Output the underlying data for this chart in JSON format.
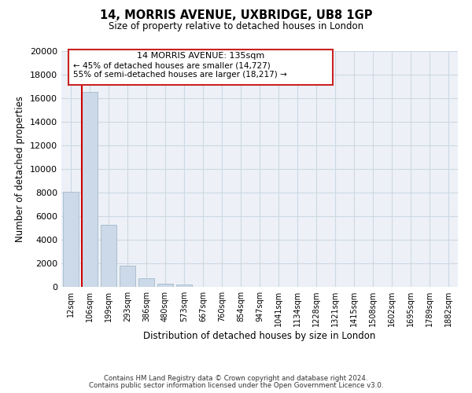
{
  "title": "14, MORRIS AVENUE, UXBRIDGE, UB8 1GP",
  "subtitle": "Size of property relative to detached houses in London",
  "xlabel": "Distribution of detached houses by size in London",
  "ylabel": "Number of detached properties",
  "bar_labels": [
    "12sqm",
    "106sqm",
    "199sqm",
    "293sqm",
    "386sqm",
    "480sqm",
    "573sqm",
    "667sqm",
    "760sqm",
    "854sqm",
    "947sqm",
    "1041sqm",
    "1134sqm",
    "1228sqm",
    "1321sqm",
    "1415sqm",
    "1508sqm",
    "1602sqm",
    "1695sqm",
    "1789sqm",
    "1882sqm"
  ],
  "bar_values": [
    8100,
    16500,
    5300,
    1800,
    750,
    300,
    200,
    0,
    0,
    0,
    0,
    0,
    0,
    0,
    0,
    0,
    0,
    0,
    0,
    0,
    0
  ],
  "bar_color": "#ccd9e8",
  "bar_edge_color": "#aabfcf",
  "vline_color": "#cc0000",
  "ylim": [
    0,
    20000
  ],
  "yticks": [
    0,
    2000,
    4000,
    6000,
    8000,
    10000,
    12000,
    14000,
    16000,
    18000,
    20000
  ],
  "annotation_title": "14 MORRIS AVENUE: 135sqm",
  "annotation_line1": "← 45% of detached houses are smaller (14,727)",
  "annotation_line2": "55% of semi-detached houses are larger (18,217) →",
  "footnote1": "Contains HM Land Registry data © Crown copyright and database right 2024.",
  "footnote2": "Contains public sector information licensed under the Open Government Licence v3.0.",
  "grid_color": "#ccd8e4",
  "background_color": "#edf1f7"
}
